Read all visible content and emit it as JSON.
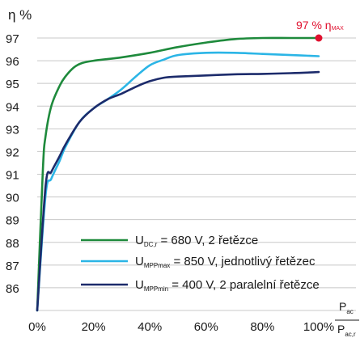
{
  "chart_data": {
    "type": "line",
    "ylabel": "η %",
    "xlabel_numerator": "P",
    "xlabel_numerator_sub": "ac",
    "xlabel_denominator": "P",
    "xlabel_denominator_sub": "ac,r",
    "ylim": [
      85,
      97
    ],
    "xlim": [
      0,
      100
    ],
    "y_ticks": [
      86,
      87,
      88,
      89,
      90,
      91,
      92,
      93,
      94,
      95,
      96,
      97
    ],
    "x_ticks": [
      "0%",
      "20%",
      "40%",
      "60%",
      "80%",
      "100%"
    ],
    "x_tick_values": [
      0,
      20,
      40,
      60,
      80,
      100
    ],
    "grid": "horizontal",
    "legend_position": "bottom-right",
    "annotation": {
      "text": "97 % η",
      "sub": "MAX",
      "x": 100,
      "y": 97,
      "color": "#e0102e"
    },
    "series": [
      {
        "name_main": "U",
        "name_sub": "DC,r",
        "name_rest": "= 680 V, 2 řetězce",
        "color": "#1e8a3c",
        "x": [
          0,
          2,
          3,
          5,
          8,
          10,
          13,
          16,
          20,
          30,
          40,
          50,
          60,
          70,
          80,
          90,
          100
        ],
        "y": [
          85,
          91.2,
          92.7,
          94.0,
          94.9,
          95.3,
          95.7,
          95.9,
          96.0,
          96.15,
          96.35,
          96.6,
          96.8,
          96.95,
          97.0,
          97.0,
          97.0
        ]
      },
      {
        "name_main": "U",
        "name_sub": "MPPmax",
        "name_rest": "= 850 V, jednotlivý řetězec",
        "color": "#2bb5e6",
        "x": [
          0,
          3,
          5,
          8,
          10,
          15,
          20,
          25,
          30,
          35,
          40,
          45,
          50,
          60,
          70,
          80,
          90,
          100
        ],
        "y": [
          85,
          90.1,
          90.8,
          91.6,
          92.2,
          93.3,
          93.9,
          94.3,
          94.75,
          95.3,
          95.8,
          96.05,
          96.25,
          96.35,
          96.35,
          96.3,
          96.25,
          96.2
        ]
      },
      {
        "name_main": "U",
        "name_sub": "MPPmin",
        "name_rest": "= 400 V, 2 paralelní řetězce",
        "color": "#1c2b6b",
        "x": [
          0,
          3,
          5,
          8,
          10,
          15,
          20,
          25,
          30,
          35,
          40,
          45,
          50,
          60,
          70,
          80,
          90,
          100
        ],
        "y": [
          85,
          90.5,
          91.1,
          91.8,
          92.3,
          93.3,
          93.9,
          94.3,
          94.55,
          94.85,
          95.1,
          95.25,
          95.3,
          95.35,
          95.4,
          95.42,
          95.45,
          95.5
        ]
      }
    ]
  }
}
